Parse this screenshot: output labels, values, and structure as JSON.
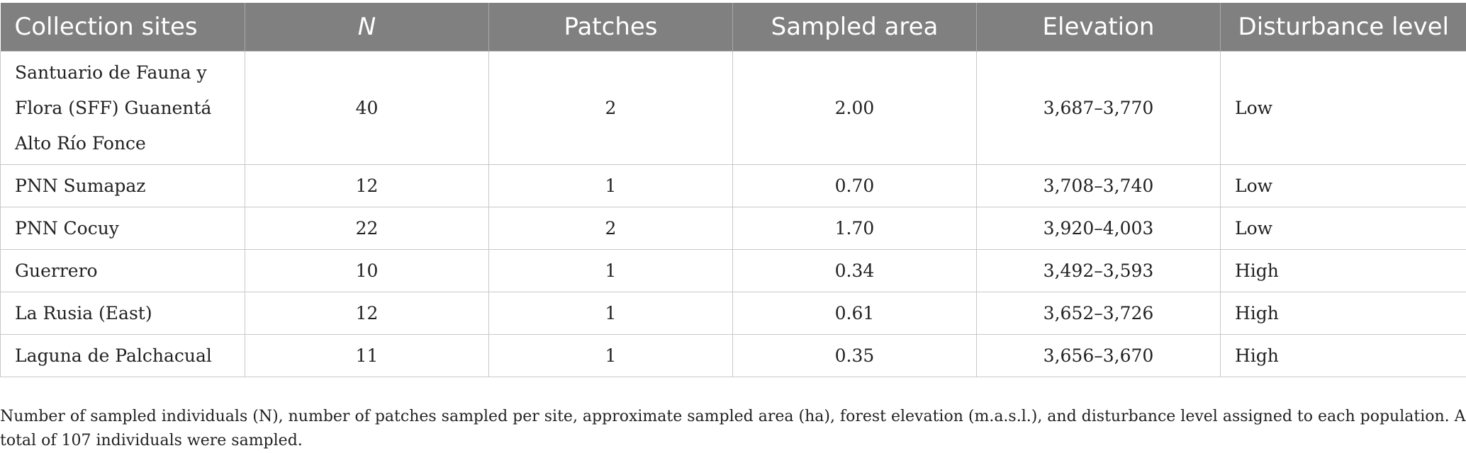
{
  "table": {
    "headers": [
      "Collection sites",
      "N",
      "Patches",
      "Sampled area",
      "Elevation",
      "Disturbance level"
    ],
    "rows": [
      {
        "site": "Santuario de Fauna y\nFlora (SFF) Guanentá\nAlto Río Fonce",
        "n": "40",
        "patches": "2",
        "area": "2.00",
        "elevation": "3,687–3,770",
        "disturbance": "Low"
      },
      {
        "site": "PNN Sumapaz",
        "n": "12",
        "patches": "1",
        "area": "0.70",
        "elevation": "3,708–3,740",
        "disturbance": "Low"
      },
      {
        "site": "PNN Cocuy",
        "n": "22",
        "patches": "2",
        "area": "1.70",
        "elevation": "3,920–4,003",
        "disturbance": "Low"
      },
      {
        "site": "Guerrero",
        "n": "10",
        "patches": "1",
        "area": "0.34",
        "elevation": "3,492–3,593",
        "disturbance": "High"
      },
      {
        "site": "La Rusia (East)",
        "n": "12",
        "patches": "1",
        "area": "0.61",
        "elevation": "3,652–3,726",
        "disturbance": "High"
      },
      {
        "site": "Laguna de Palchacual",
        "n": "11",
        "patches": "1",
        "area": "0.35",
        "elevation": "3,656–3,670",
        "disturbance": "High"
      }
    ]
  },
  "note": "Number of sampled individuals (N), number of patches sampled per site, approximate sampled area (ha), forest elevation (m.a.s.l.), and disturbance level assigned to each population. A total of 107 individuals were sampled."
}
